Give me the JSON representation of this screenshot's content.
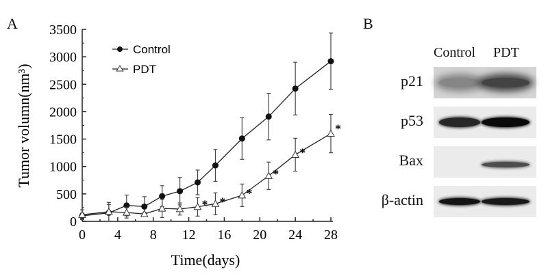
{
  "panel_a_label": "A",
  "panel_b_label": "B",
  "chart_data": {
    "type": "line",
    "title": "",
    "xlabel": "Time(days)",
    "ylabel": "Tumor volumn(nm³)",
    "xlim": [
      0,
      28
    ],
    "ylim": [
      0,
      3500
    ],
    "xticks": [
      "0",
      "4",
      "8",
      "12",
      "16",
      "20",
      "24",
      "28"
    ],
    "yticks": [
      "0",
      "500",
      "1000",
      "1500",
      "2000",
      "2500",
      "3000",
      "3500"
    ],
    "grid": false,
    "legend_position": "top-left",
    "x": [
      0,
      3,
      5,
      7,
      9,
      11,
      13,
      15,
      18,
      21,
      24,
      28
    ],
    "series": [
      {
        "name": "Control",
        "marker": "filled-circle",
        "values": [
          100,
          155,
          290,
          270,
          460,
          550,
          710,
          1020,
          1510,
          1910,
          2420,
          2920
        ],
        "errors": [
          50,
          150,
          190,
          180,
          190,
          250,
          225,
          290,
          380,
          425,
          480,
          515
        ]
      },
      {
        "name": "PDT",
        "marker": "open-triangle",
        "values": [
          120,
          175,
          160,
          135,
          235,
          225,
          265,
          320,
          475,
          830,
          1215,
          1600
        ],
        "errors": [
          90,
          170,
          100,
          30,
          165,
          110,
          170,
          200,
          205,
          250,
          300,
          350
        ],
        "significance_marker": "*",
        "significant_days": [
          13,
          15,
          18,
          21,
          24,
          28
        ]
      }
    ]
  },
  "blot": {
    "columns": [
      "Control",
      "PDT"
    ],
    "rows": [
      {
        "label": "p21",
        "intensity": [
          0.35,
          0.7
        ]
      },
      {
        "label": "p53",
        "intensity": [
          0.85,
          1.0
        ]
      },
      {
        "label": "Bax",
        "intensity": [
          0.0,
          0.65
        ]
      },
      {
        "label": "β-actin",
        "intensity": [
          0.95,
          0.92
        ]
      }
    ]
  }
}
